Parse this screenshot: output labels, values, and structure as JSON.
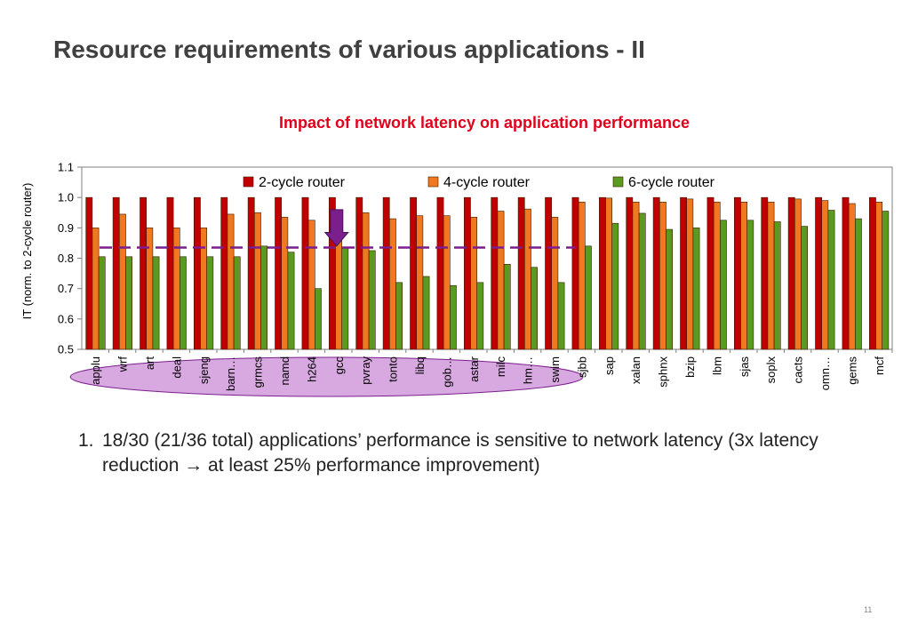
{
  "slide": {
    "title": "Resource requirements of various applications - II",
    "page_number": "11",
    "bullet_number": "1.",
    "bullet_text": "18/30 (21/36 total) applications’ performance is sensitive to network latency (3x latency reduction → at least 25% performance improvement)"
  },
  "colors": {
    "series_2cycle": "#c00000",
    "series_4cycle": "#f07820",
    "series_6cycle": "#5a9a1e",
    "threshold_line": "#7a1f8c",
    "arrow": "#7a1f8c",
    "highlight_ellipse": "#d8a8e0",
    "title_red": "#e0001b"
  },
  "chart_data": {
    "type": "bar",
    "title": "Impact of network latency on application performance",
    "xlabel": "",
    "ylabel": "IT (norm. to 2-cycle router)",
    "ylim": [
      0.5,
      1.1
    ],
    "yticks": [
      "0.5",
      "0.6",
      "0.7",
      "0.8",
      "0.9",
      "1.0",
      "1.1"
    ],
    "legend_position": "top",
    "grid": false,
    "categories": [
      "applu",
      "wrf",
      "art",
      "deal",
      "sjeng",
      "barn…",
      "grmcs",
      "namd",
      "h264",
      "gcc",
      "pvray",
      "tonto",
      "libq",
      "gob…",
      "astar",
      "milc",
      "hm…",
      "swim",
      "sjbb",
      "sap",
      "xalan",
      "sphnx",
      "bzip",
      "lbm",
      "sjas",
      "soplx",
      "cacts",
      "omn…",
      "gems",
      "mcf"
    ],
    "series": [
      {
        "name": "2-cycle router",
        "values": [
          1.0,
          1.0,
          1.0,
          1.0,
          1.0,
          1.0,
          1.0,
          1.0,
          1.0,
          1.0,
          1.0,
          1.0,
          1.0,
          1.0,
          1.0,
          1.0,
          1.0,
          1.0,
          1.0,
          1.0,
          1.0,
          1.0,
          1.0,
          1.0,
          1.0,
          1.0,
          1.0,
          1.0,
          1.0,
          1.0
        ]
      },
      {
        "name": "4-cycle router",
        "values": [
          0.9,
          0.945,
          0.9,
          0.9,
          0.9,
          0.945,
          0.95,
          0.935,
          0.925,
          0.95,
          0.95,
          0.93,
          0.94,
          0.94,
          0.935,
          0.955,
          0.962,
          0.935,
          0.985,
          0.998,
          0.985,
          0.985,
          0.995,
          0.985,
          0.985,
          0.985,
          0.995,
          0.99,
          0.98,
          0.985
        ]
      },
      {
        "name": "6-cycle router",
        "values": [
          0.805,
          0.805,
          0.805,
          0.805,
          0.805,
          0.805,
          0.84,
          0.82,
          0.7,
          0.835,
          0.825,
          0.72,
          0.74,
          0.71,
          0.72,
          0.78,
          0.77,
          0.72,
          0.84,
          0.915,
          0.948,
          0.895,
          0.9,
          0.925,
          0.925,
          0.92,
          0.905,
          0.958,
          0.93,
          0.955
        ]
      }
    ],
    "reference_line": 0.835,
    "highlighted_range": [
      "applu",
      "swim"
    ],
    "arrow_at": "gcc"
  }
}
